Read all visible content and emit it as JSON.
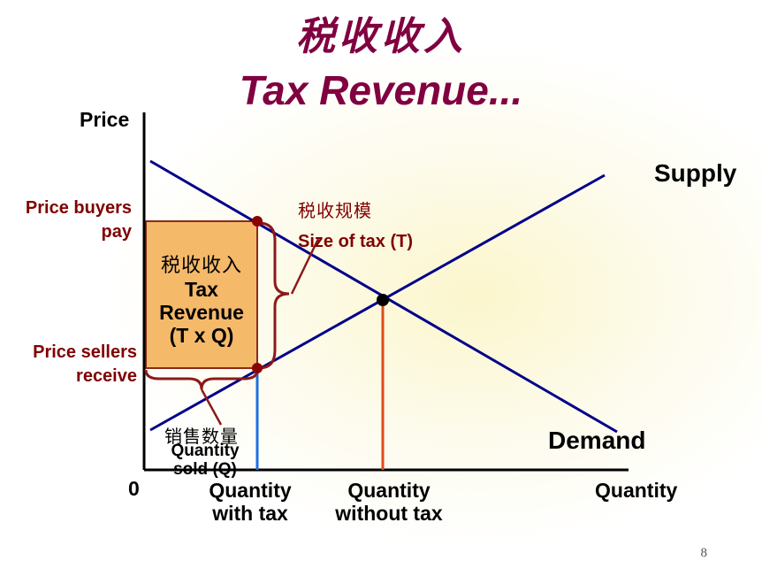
{
  "title": {
    "chinese": "税收收入",
    "english": "Tax Revenue..."
  },
  "axes": {
    "y_label": "Price",
    "x_label": "Quantity",
    "origin": "0"
  },
  "curves": {
    "supply": "Supply",
    "demand": "Demand"
  },
  "price_labels": {
    "buyers_pay": [
      "Price buyers",
      "pay"
    ],
    "sellers_receive": [
      "Price sellers",
      "receive"
    ]
  },
  "tax_size": {
    "chinese": "税收规模",
    "english": "Size of tax (T)"
  },
  "revenue_box": {
    "chinese": "税收收入",
    "line1": "Tax",
    "line2": "Revenue",
    "line3": "(T x Q)"
  },
  "quantity_sold": {
    "chinese": "销售数量",
    "line1": "Quantity",
    "line2": "sold (Q)"
  },
  "quantity_labels": {
    "with_tax": [
      "Quantity",
      "with tax"
    ],
    "without_tax": [
      "Quantity",
      "without tax"
    ]
  },
  "page_number": "8",
  "colors": {
    "title": "#800040",
    "curve": "#00008B",
    "revenue_fill": "#F5B96A",
    "label_accent": "#800000",
    "quantity_with_tax_line": "#1E6FE0",
    "quantity_without_tax_line": "#E04A1A",
    "brace": "#8B1A1A"
  }
}
